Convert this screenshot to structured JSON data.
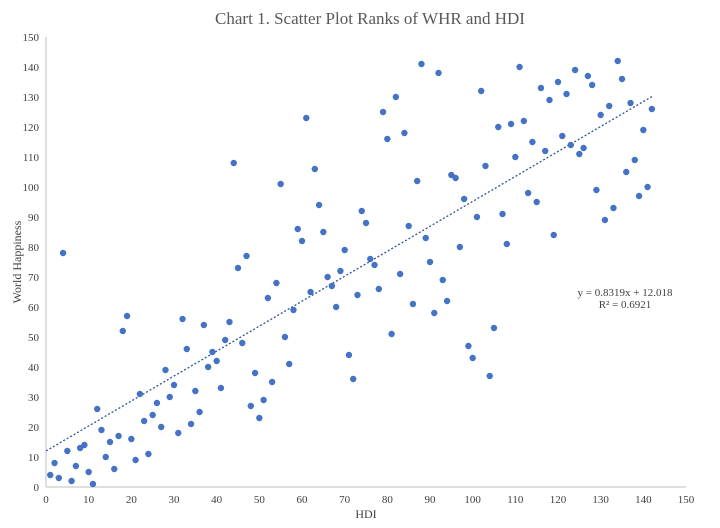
{
  "chart_data": {
    "type": "scatter",
    "title": "Chart 1.  Scatter Plot Ranks of WHR and HDI",
    "xlabel": "HDI",
    "ylabel": "World Happiness",
    "xlim": [
      0,
      150
    ],
    "ylim": [
      0,
      150
    ],
    "xticks": [
      0,
      10,
      20,
      30,
      40,
      50,
      60,
      70,
      80,
      90,
      100,
      110,
      120,
      130,
      140,
      150
    ],
    "yticks": [
      0,
      10,
      20,
      30,
      40,
      50,
      60,
      70,
      80,
      90,
      100,
      110,
      120,
      130,
      140,
      150
    ],
    "grid": false,
    "marker_color": "#4472C4",
    "trendline": {
      "slope": 0.8319,
      "intercept": 12.018,
      "equation_label": "y = 0.8319x + 12.018",
      "r2_label": "R² = 0.6921",
      "x_range": [
        0,
        142
      ]
    },
    "points": [
      [
        1,
        4
      ],
      [
        2,
        8
      ],
      [
        3,
        3
      ],
      [
        4,
        78
      ],
      [
        5,
        12
      ],
      [
        6,
        2
      ],
      [
        7,
        7
      ],
      [
        8,
        13
      ],
      [
        9,
        14
      ],
      [
        10,
        5
      ],
      [
        11,
        1
      ],
      [
        12,
        26
      ],
      [
        13,
        19
      ],
      [
        14,
        10
      ],
      [
        15,
        15
      ],
      [
        16,
        6
      ],
      [
        17,
        17
      ],
      [
        18,
        52
      ],
      [
        19,
        57
      ],
      [
        20,
        16
      ],
      [
        21,
        9
      ],
      [
        22,
        31
      ],
      [
        23,
        22
      ],
      [
        24,
        11
      ],
      [
        25,
        24
      ],
      [
        26,
        28
      ],
      [
        27,
        20
      ],
      [
        28,
        39
      ],
      [
        29,
        30
      ],
      [
        30,
        34
      ],
      [
        31,
        18
      ],
      [
        32,
        56
      ],
      [
        33,
        46
      ],
      [
        34,
        21
      ],
      [
        35,
        32
      ],
      [
        36,
        25
      ],
      [
        37,
        54
      ],
      [
        38,
        40
      ],
      [
        39,
        45
      ],
      [
        40,
        42
      ],
      [
        41,
        33
      ],
      [
        42,
        49
      ],
      [
        43,
        55
      ],
      [
        44,
        108
      ],
      [
        45,
        73
      ],
      [
        46,
        48
      ],
      [
        47,
        77
      ],
      [
        48,
        27
      ],
      [
        49,
        38
      ],
      [
        50,
        23
      ],
      [
        51,
        29
      ],
      [
        52,
        63
      ],
      [
        53,
        35
      ],
      [
        54,
        68
      ],
      [
        55,
        101
      ],
      [
        56,
        50
      ],
      [
        57,
        41
      ],
      [
        58,
        59
      ],
      [
        59,
        86
      ],
      [
        60,
        82
      ],
      [
        61,
        123
      ],
      [
        62,
        65
      ],
      [
        63,
        106
      ],
      [
        64,
        94
      ],
      [
        65,
        85
      ],
      [
        66,
        70
      ],
      [
        67,
        67
      ],
      [
        68,
        60
      ],
      [
        69,
        72
      ],
      [
        70,
        79
      ],
      [
        71,
        44
      ],
      [
        72,
        36
      ],
      [
        73,
        64
      ],
      [
        74,
        92
      ],
      [
        75,
        88
      ],
      [
        76,
        76
      ],
      [
        77,
        74
      ],
      [
        78,
        66
      ],
      [
        79,
        125
      ],
      [
        80,
        116
      ],
      [
        81,
        51
      ],
      [
        82,
        130
      ],
      [
        83,
        71
      ],
      [
        84,
        118
      ],
      [
        85,
        87
      ],
      [
        86,
        61
      ],
      [
        87,
        102
      ],
      [
        88,
        141
      ],
      [
        89,
        83
      ],
      [
        90,
        75
      ],
      [
        91,
        58
      ],
      [
        92,
        138
      ],
      [
        93,
        69
      ],
      [
        94,
        62
      ],
      [
        95,
        104
      ],
      [
        96,
        103
      ],
      [
        97,
        80
      ],
      [
        98,
        96
      ],
      [
        99,
        47
      ],
      [
        100,
        43
      ],
      [
        101,
        90
      ],
      [
        102,
        132
      ],
      [
        103,
        107
      ],
      [
        104,
        37
      ],
      [
        105,
        53
      ],
      [
        106,
        120
      ],
      [
        107,
        91
      ],
      [
        108,
        81
      ],
      [
        109,
        121
      ],
      [
        110,
        110
      ],
      [
        111,
        140
      ],
      [
        112,
        122
      ],
      [
        113,
        98
      ],
      [
        114,
        115
      ],
      [
        115,
        95
      ],
      [
        116,
        133
      ],
      [
        117,
        112
      ],
      [
        118,
        129
      ],
      [
        119,
        84
      ],
      [
        120,
        135
      ],
      [
        121,
        117
      ],
      [
        122,
        131
      ],
      [
        123,
        114
      ],
      [
        124,
        139
      ],
      [
        125,
        111
      ],
      [
        126,
        113
      ],
      [
        127,
        137
      ],
      [
        128,
        134
      ],
      [
        129,
        99
      ],
      [
        130,
        124
      ],
      [
        131,
        89
      ],
      [
        132,
        127
      ],
      [
        133,
        93
      ],
      [
        134,
        142
      ],
      [
        135,
        136
      ],
      [
        136,
        105
      ],
      [
        137,
        128
      ],
      [
        138,
        109
      ],
      [
        139,
        97
      ],
      [
        140,
        119
      ],
      [
        141,
        100
      ],
      [
        142,
        126
      ]
    ]
  }
}
